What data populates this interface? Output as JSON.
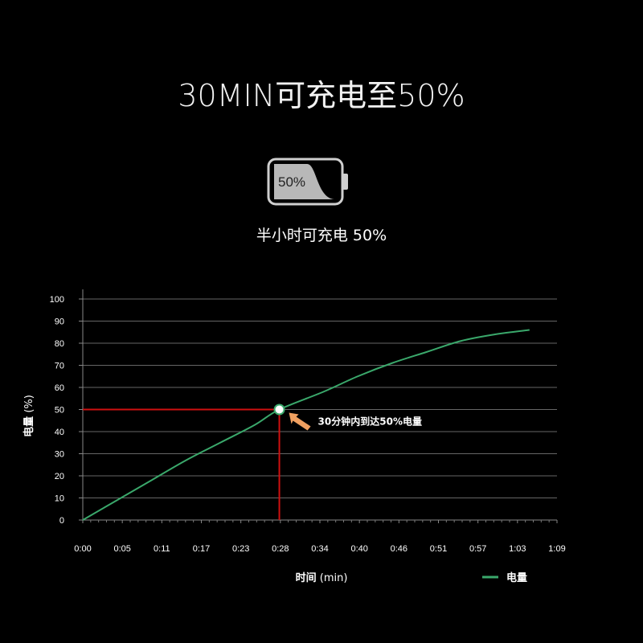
{
  "header": {
    "title": "30MIN可充电至50%",
    "battery_label": "50%",
    "subtitle": "半小时可充电 50%"
  },
  "colors": {
    "background": "#000000",
    "curve": "#3aa86b",
    "marker_lines": "#d01010",
    "annotation_arrow": "#f0a060",
    "grid": "#666666"
  },
  "chart_data": {
    "type": "line",
    "title": "",
    "xlabel_bold": "时间",
    "xlabel_unit": " (min)",
    "ylabel_bold": "电量",
    "ylabel_unit": " (%)",
    "ylim": [
      0,
      100
    ],
    "yticks": [
      0,
      10,
      20,
      30,
      40,
      50,
      60,
      70,
      80,
      90,
      100
    ],
    "xlim": [
      0,
      69
    ],
    "xticks": [
      {
        "label": "0:00",
        "value": 0
      },
      {
        "label": "0:05",
        "value": 5.75
      },
      {
        "label": "0:11",
        "value": 11.5
      },
      {
        "label": "0:17",
        "value": 17.25
      },
      {
        "label": "0:23",
        "value": 23
      },
      {
        "label": "0:28",
        "value": 28.75
      },
      {
        "label": "0:34",
        "value": 34.5
      },
      {
        "label": "0:40",
        "value": 40.25
      },
      {
        "label": "0:46",
        "value": 46
      },
      {
        "label": "0:51",
        "value": 51.75
      },
      {
        "label": "0:57",
        "value": 57.5
      },
      {
        "label": "1:03",
        "value": 63.25
      },
      {
        "label": "1:09",
        "value": 69
      }
    ],
    "series": [
      {
        "name": "电量",
        "x": [
          0,
          5,
          10,
          15,
          20,
          25,
          28.6,
          35,
          40,
          45,
          50,
          55,
          60,
          65
        ],
        "y": [
          0,
          9,
          18,
          27,
          35,
          43,
          50,
          58,
          65,
          71,
          76,
          81,
          84,
          86
        ]
      }
    ],
    "highlight_point": {
      "x": 28.6,
      "y": 50
    },
    "annotation": "30分钟内到达50%电量",
    "legend_position": "bottom-right",
    "grid": true
  }
}
